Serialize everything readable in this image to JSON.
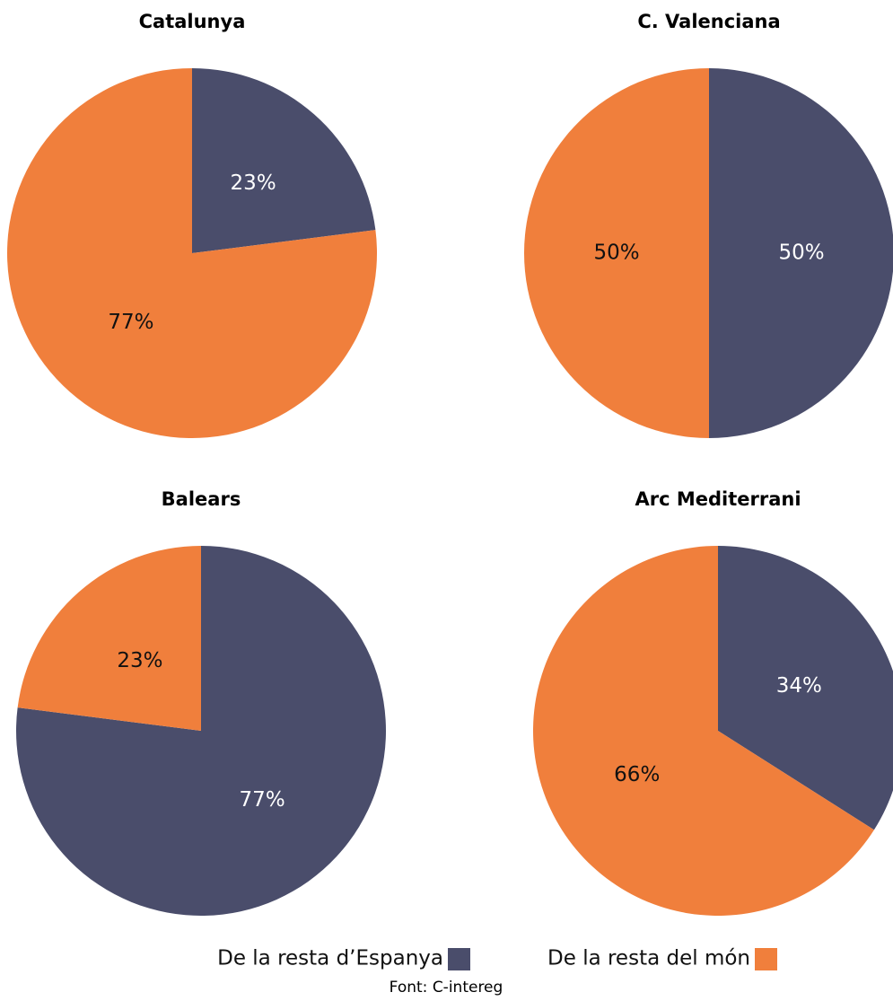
{
  "chart_data": [
    {
      "type": "pie",
      "title": "Catalunya",
      "values": [
        23,
        77
      ],
      "value_labels": [
        "23%",
        "77%"
      ],
      "colors": [
        "#4a4d6b",
        "#f07f3c"
      ]
    },
    {
      "type": "pie",
      "title": "C. Valenciana",
      "values": [
        50,
        50
      ],
      "value_labels": [
        "50%",
        "50%"
      ],
      "colors": [
        "#4a4d6b",
        "#f07f3c"
      ]
    },
    {
      "type": "pie",
      "title": "Balears",
      "values": [
        77,
        23
      ],
      "value_labels": [
        "77%",
        "23%"
      ],
      "colors": [
        "#4a4d6b",
        "#f07f3c"
      ]
    },
    {
      "type": "pie",
      "title": "Arc Mediterrani",
      "values": [
        34,
        66
      ],
      "value_labels": [
        "34%",
        "66%"
      ],
      "colors": [
        "#4a4d6b",
        "#f07f3c"
      ]
    }
  ],
  "legend": {
    "names": [
      "De la resta d’Espanya",
      "De la resta del món"
    ],
    "colors": [
      "#4a4d6b",
      "#f07f3c"
    ]
  },
  "source": "Font: C-intereg"
}
